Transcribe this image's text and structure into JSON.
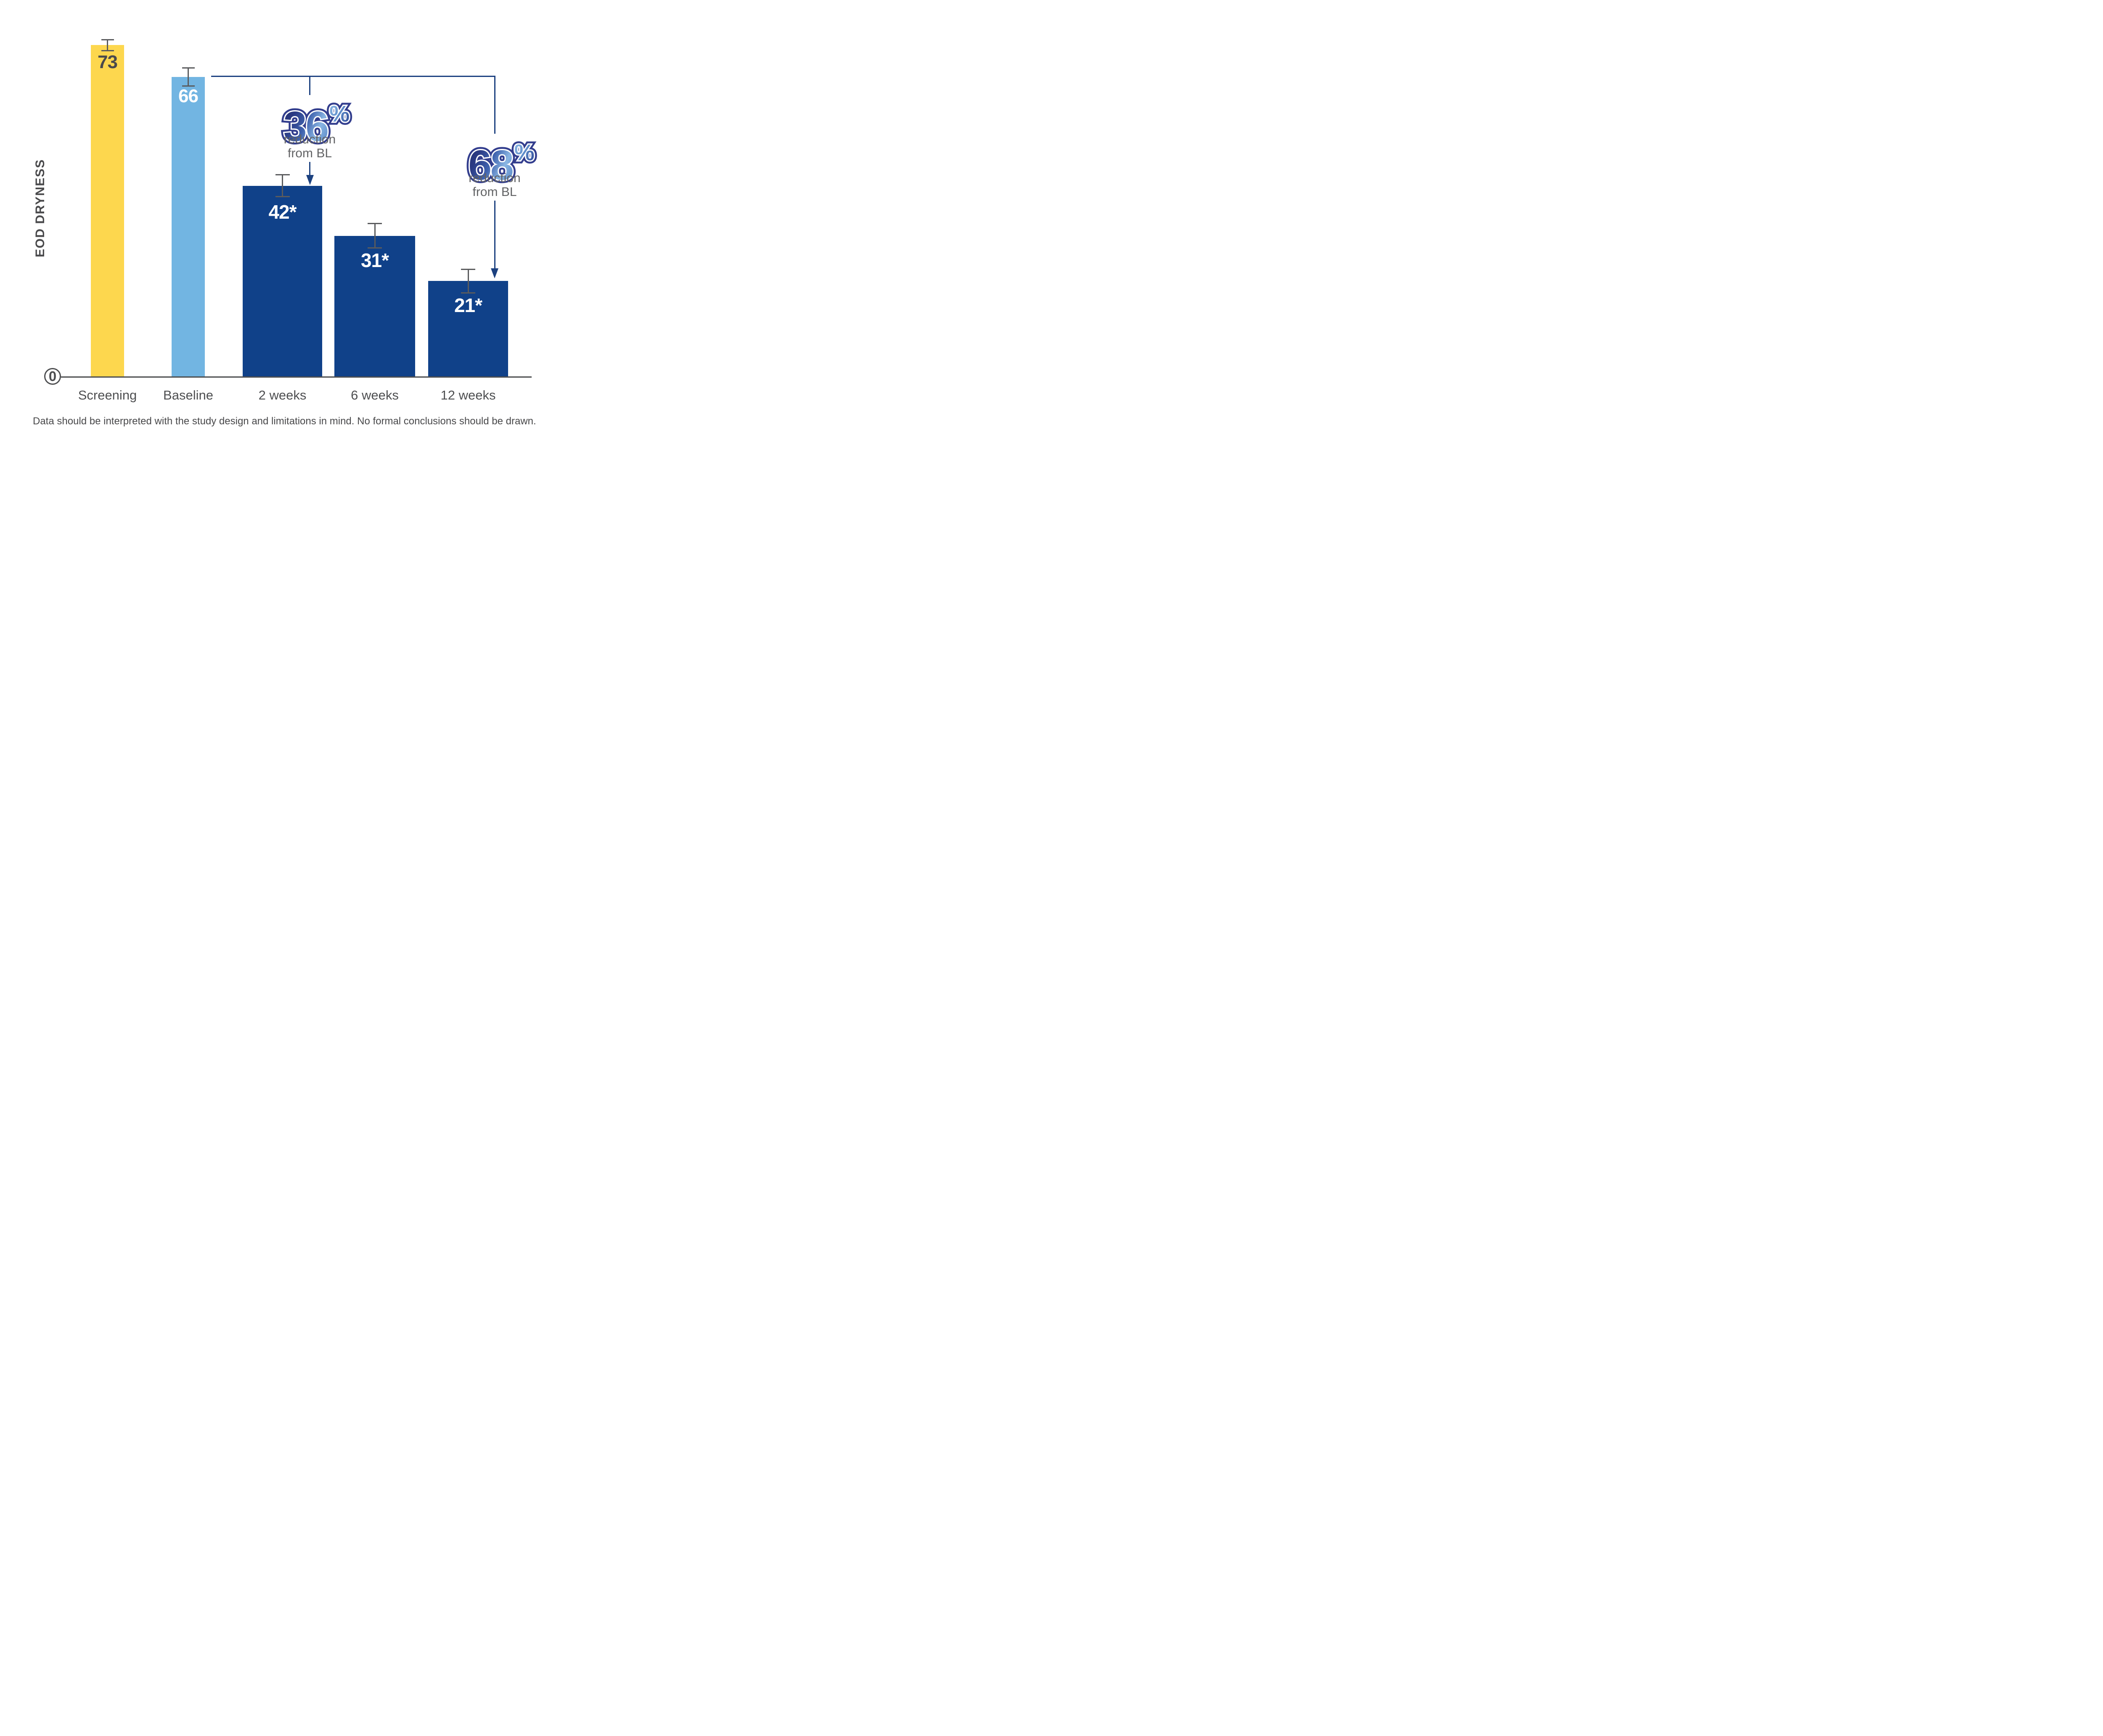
{
  "chart_data": {
    "type": "bar",
    "title": "",
    "y_axis_label": "EOD DRYNESS",
    "x_axis_origin_label": "0",
    "categories": [
      "Screening",
      "Baseline",
      "2 weeks",
      "6 weeks",
      "12 weeks"
    ],
    "values": [
      73,
      66,
      42,
      31,
      21
    ],
    "bar_labels": [
      "73",
      "66",
      "42*",
      "31*",
      "21*"
    ],
    "error_bars": [
      1.2,
      2.0,
      2.4,
      2.7,
      2.6
    ],
    "ylim": [
      0,
      80
    ],
    "grid": false,
    "legend": "none",
    "bar_colors": [
      "#FDD74E",
      "#72B5E2",
      "#104189",
      "#104189",
      "#104189"
    ],
    "value_label_colors": [
      "#4A4A4C",
      "#FFFFFF",
      "#FFFFFF",
      "#FFFFFF",
      "#FFFFFF"
    ],
    "callouts": [
      {
        "value": "36",
        "suffix": "%",
        "caption_line1": "reduction",
        "caption_line2": "from BL",
        "target_category": "2 weeks",
        "source_category": "Baseline"
      },
      {
        "value": "68",
        "suffix": "%",
        "caption_line1": "reduction",
        "caption_line2": "from BL",
        "target_category": "12 weeks",
        "source_category": "Baseline"
      }
    ],
    "footnote": "Data should be interpreted with the study design and limitations in mind. No formal conclusions should be drawn."
  },
  "palette": {
    "screening_yellow": "#FDD74E",
    "baseline_light_blue": "#72B5E2",
    "treatment_navy": "#104189",
    "connector_navy": "#1C4180",
    "error_bar_gray": "#5A5B5D",
    "axis_gray": "#4D4E50",
    "tick_label_gray": "#4E4F51",
    "caption_gray": "#626365",
    "footnote_gray": "#48484A",
    "bignum_outline": "#333E8E",
    "bignum_inner_outline": "#FFFFFF"
  }
}
